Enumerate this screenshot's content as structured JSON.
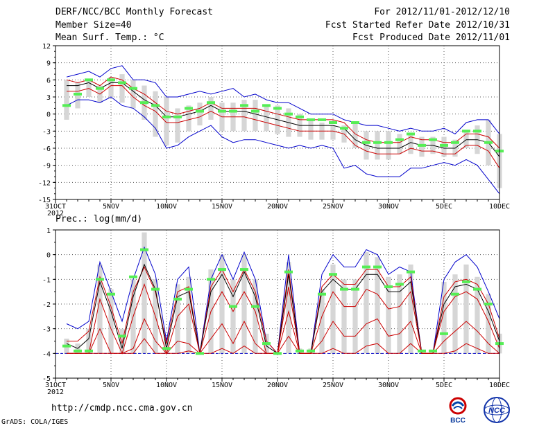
{
  "header": {
    "title": "DERF/NCC/BCC Monthly Forecast",
    "member_size": "Member Size=40",
    "variable": "Mean Surf. Temp.: °C",
    "period": "For 2012/11/01-2012/12/10",
    "started": "Fcst Started Refer Date 2012/10/31",
    "produced": "Fcst Produced Date 2012/11/01"
  },
  "footer": {
    "url": "http://cmdp.ncc.cma.gov.cn",
    "grads": "GrADS: COLA/IGES",
    "logo_bcc": "BCC",
    "logo_ncc": "NCC"
  },
  "colors": {
    "mean": "#000000",
    "envelope": "#0000cc",
    "spread": "#cc0000",
    "bar": "#d6d6d6",
    "marker": "#55ee55",
    "grid": "#555555",
    "dashed_zero": "#0000cc"
  },
  "chart_data": [
    {
      "type": "line",
      "title": "Mean Surf. Temp.: °C",
      "x_tick_labels": [
        "31OCT",
        "5NOV",
        "10NOV",
        "15NOV",
        "20NOV",
        "25NOV",
        "30NOV",
        "5DEC",
        "10DEC"
      ],
      "x_tick_days": [
        0,
        5,
        10,
        15,
        20,
        25,
        30,
        35,
        40
      ],
      "year_label": "2012",
      "ylim": [
        -15,
        12
      ],
      "y_ticks": [
        -15,
        -12,
        -9,
        -6,
        -3,
        0,
        3,
        6,
        9,
        12
      ],
      "days": [
        1,
        2,
        3,
        4,
        5,
        6,
        7,
        8,
        9,
        10,
        11,
        12,
        13,
        14,
        15,
        16,
        17,
        18,
        19,
        20,
        21,
        22,
        23,
        24,
        25,
        26,
        27,
        28,
        29,
        30,
        31,
        32,
        33,
        34,
        35,
        36,
        37,
        38,
        39,
        40
      ],
      "series": [
        {
          "name": "max",
          "values": [
            6.5,
            7,
            7.5,
            6.5,
            8,
            8.5,
            6,
            6,
            5.5,
            3,
            3,
            3.5,
            4,
            3.5,
            4,
            4.5,
            3,
            3.5,
            2.5,
            2,
            2,
            1,
            0,
            0,
            0,
            -1,
            -1.5,
            -2,
            -2,
            -2.5,
            -3,
            -2.5,
            -3,
            -3,
            -2.5,
            -3.5,
            -1.5,
            -1,
            -1,
            -3.5
          ]
        },
        {
          "name": "upper",
          "values": [
            6,
            5.5,
            6,
            5,
            6.5,
            6,
            4.5,
            3.5,
            2,
            0.5,
            0,
            0.5,
            1,
            2,
            1,
            1,
            1,
            1,
            0.5,
            0,
            -0.5,
            -1,
            -1,
            -1,
            -1,
            -1.5,
            -3.5,
            -4.5,
            -5,
            -5,
            -5,
            -4,
            -4.5,
            -4.5,
            -5,
            -5,
            -3.5,
            -3.5,
            -4,
            -6
          ]
        },
        {
          "name": "mean",
          "values": [
            5,
            5,
            5.5,
            4.5,
            5.5,
            5.5,
            4,
            2.5,
            1.5,
            -0.5,
            -0.5,
            0,
            0.5,
            1.5,
            0.5,
            0.5,
            0.5,
            0,
            -0.5,
            -1,
            -1.5,
            -2,
            -2,
            -2,
            -2,
            -2.5,
            -4.5,
            -5.5,
            -6,
            -6,
            -6,
            -5,
            -5.5,
            -5.5,
            -6,
            -6,
            -4.5,
            -4.5,
            -5,
            -7.5
          ]
        },
        {
          "name": "lower",
          "values": [
            4,
            4,
            4.5,
            3.5,
            5,
            5,
            3,
            1.5,
            0.5,
            -1.5,
            -1.5,
            -1,
            -0.5,
            0.5,
            -0.5,
            -0.5,
            -0.5,
            -1,
            -1.5,
            -2,
            -2.5,
            -3,
            -3,
            -3,
            -3,
            -3.5,
            -5.5,
            -6.5,
            -7,
            -7,
            -7,
            -6,
            -6.5,
            -6.5,
            -7,
            -7,
            -5.5,
            -5.5,
            -6.5,
            -9.5
          ]
        },
        {
          "name": "min",
          "values": [
            1.5,
            2.5,
            2.5,
            2,
            3,
            1.5,
            1,
            -0.5,
            -2.5,
            -6,
            -5.5,
            -4,
            -3,
            -2,
            -4,
            -5,
            -4.5,
            -4.5,
            -5,
            -5.5,
            -6,
            -5.5,
            -6,
            -5.5,
            -6,
            -9.5,
            -9,
            -10.5,
            -11,
            -11,
            -11,
            -9.5,
            -9.5,
            -9,
            -8.5,
            -9,
            -8,
            -9,
            -11.5,
            -14
          ]
        },
        {
          "name": "observed_marks",
          "values": [
            1.5,
            3.5,
            6,
            4.5,
            6,
            5.5,
            4.5,
            2,
            1.5,
            -0.5,
            -0.5,
            1,
            0.5,
            2,
            0.5,
            0.5,
            1.5,
            0.5,
            1.5,
            1,
            0,
            -0.5,
            -1,
            -1,
            -1.5,
            -2.5,
            -1.5,
            -5,
            -5,
            -5,
            -4.5,
            -3.5,
            -5.5,
            -4.5,
            -5.5,
            -5,
            -3,
            -3,
            -5,
            -6.5
          ]
        },
        {
          "name": "bar_top",
          "values": [
            6,
            5.5,
            6,
            5,
            6.5,
            7,
            6,
            5,
            4,
            3,
            1,
            1.5,
            2,
            3,
            2,
            2,
            2.5,
            2.5,
            1.5,
            1.5,
            1,
            0,
            -1,
            -1.5,
            -2,
            -2,
            -1.5,
            -3,
            -3,
            -3,
            -3.5,
            -3.5,
            -4,
            -4,
            -4,
            -4.5,
            -3,
            -2,
            -1,
            -3.5
          ]
        },
        {
          "name": "bar_bottom",
          "values": [
            -1,
            1,
            3,
            2,
            3,
            2,
            1,
            -1,
            -4,
            -5.5,
            -5,
            -3,
            -2,
            -1,
            -3,
            -3,
            -3,
            -3,
            -3,
            -3.5,
            -4,
            -4,
            -4.5,
            -4.5,
            -4.5,
            -5,
            -6,
            -8,
            -8,
            -8,
            -7,
            -7,
            -7.5,
            -7,
            -7.5,
            -7.5,
            -6,
            -7,
            -9,
            -13
          ]
        }
      ]
    },
    {
      "type": "line",
      "title": "Prec.: log(mm/d)",
      "x_tick_labels": [
        "31OCT",
        "5NOV",
        "10NOV",
        "15NOV",
        "20NOV",
        "25NOV",
        "30NOV",
        "5DEC",
        "10DEC"
      ],
      "x_tick_days": [
        0,
        5,
        10,
        15,
        20,
        25,
        30,
        35,
        40
      ],
      "year_label": "2012",
      "ylim": [
        -5,
        1
      ],
      "y_ticks": [
        -5,
        -4,
        -3,
        -2,
        -1,
        0,
        1
      ],
      "days": [
        1,
        2,
        3,
        4,
        5,
        6,
        7,
        8,
        9,
        10,
        11,
        12,
        13,
        14,
        15,
        16,
        17,
        18,
        19,
        20,
        21,
        22,
        23,
        24,
        25,
        26,
        27,
        28,
        29,
        30,
        31,
        32,
        33,
        34,
        35,
        36,
        37,
        38,
        39,
        40
      ],
      "series": [
        {
          "name": "max",
          "values": [
            -2.8,
            -3,
            -2.7,
            -0.3,
            -1.5,
            -2.7,
            -1,
            0.3,
            -0.8,
            -3.5,
            -1,
            -0.5,
            -4,
            -1,
            0,
            -1,
            0.1,
            -1,
            -3.5,
            -4,
            0,
            -4,
            -4,
            -0.8,
            0,
            -0.5,
            -0.5,
            0.2,
            0,
            -0.8,
            -0.5,
            -0.7,
            -4,
            -4,
            -1,
            -0.3,
            0,
            -0.5,
            -1.5,
            -2.6
          ]
        },
        {
          "name": "upper",
          "values": [
            -3.5,
            -3.5,
            -3.1,
            -0.9,
            -2.1,
            -3.6,
            -1.5,
            -0.5,
            -1.5,
            -3.6,
            -1.5,
            -1.3,
            -4,
            -1.3,
            -0.6,
            -1.5,
            -0.6,
            -1.5,
            -3.5,
            -4,
            -0.6,
            -4,
            -4,
            -1.3,
            -0.8,
            -1.2,
            -1.2,
            -0.6,
            -0.6,
            -1.3,
            -1.3,
            -0.9,
            -4,
            -4,
            -1.7,
            -1.1,
            -1,
            -1.2,
            -2,
            -3.4
          ]
        },
        {
          "name": "mean",
          "values": [
            -3.6,
            -3.8,
            -3.4,
            -1.1,
            -2.3,
            -3.8,
            -1.7,
            -0.4,
            -1.4,
            -3.8,
            -1.7,
            -1.5,
            -4,
            -1.5,
            -0.8,
            -1.7,
            -0.7,
            -1.7,
            -3.7,
            -4,
            -0.8,
            -4,
            -4,
            -1.5,
            -1,
            -1.4,
            -1.4,
            -0.8,
            -0.8,
            -1.5,
            -1.5,
            -1.1,
            -4,
            -4,
            -2,
            -1.3,
            -1.2,
            -1.4,
            -2.3,
            -3.5
          ]
        },
        {
          "name": "upper_red",
          "values": [
            -4,
            -4,
            -4,
            -1.8,
            -3,
            -4,
            -2.5,
            -1.2,
            -2.5,
            -4,
            -2.5,
            -2,
            -4,
            -2.3,
            -1.5,
            -2.3,
            -1.5,
            -2.3,
            -4,
            -4,
            -1.3,
            -4,
            -4,
            -2.5,
            -1.5,
            -2.1,
            -2.1,
            -1.4,
            -1.6,
            -2.2,
            -2.1,
            -1.5,
            -4,
            -4,
            -2.3,
            -1.7,
            -1.5,
            -1.8,
            -2.7,
            -3.8
          ]
        },
        {
          "name": "lower_red",
          "values": [
            -4,
            -4,
            -4,
            -3,
            -4,
            -4,
            -3.8,
            -2.6,
            -3.5,
            -4,
            -3.5,
            -3.6,
            -4,
            -3.4,
            -2.8,
            -3.6,
            -2.7,
            -3.6,
            -4,
            -4,
            -2.3,
            -4,
            -4,
            -3.5,
            -2.7,
            -3.3,
            -3.3,
            -2.8,
            -2.6,
            -3.3,
            -3.2,
            -2.7,
            -4,
            -4,
            -3.5,
            -3.1,
            -2.7,
            -3.1,
            -3.6,
            -4
          ]
        },
        {
          "name": "min_red",
          "values": [
            -4,
            -4,
            -4,
            -4,
            -4,
            -4,
            -4,
            -3.4,
            -4,
            -4,
            -4,
            -3.9,
            -4,
            -4,
            -3.8,
            -4,
            -3.7,
            -4,
            -4,
            -4,
            -3.3,
            -4,
            -4,
            -4,
            -3.8,
            -4,
            -4,
            -3.7,
            -3.6,
            -4,
            -4,
            -3.6,
            -4,
            -4,
            -4,
            -3.9,
            -3.6,
            -3.8,
            -4,
            -4
          ]
        },
        {
          "name": "observed_marks",
          "values": [
            -3.7,
            -3.9,
            -3.9,
            -1,
            -1.6,
            -3.3,
            -0.9,
            0.2,
            -1.4,
            -3.8,
            -1.8,
            -1.4,
            -4,
            -1,
            -0.6,
            -2.1,
            -0.6,
            -2.1,
            -3.6,
            -4,
            -0.7,
            -3.9,
            -3.9,
            -1.6,
            -0.8,
            -1.4,
            -1.4,
            -0.5,
            -0.5,
            -1.3,
            -1.2,
            -0.7,
            -3.9,
            -3.9,
            -3.2,
            -1.6,
            -1.1,
            -1.4,
            -2,
            -3.6
          ]
        },
        {
          "name": "bar_top",
          "values": [
            -3.4,
            -3.6,
            -3,
            -0.4,
            -1.4,
            -3,
            -1,
            0.9,
            -1,
            -3.4,
            -1.2,
            -0.9,
            -4,
            -0.6,
            0,
            -1,
            0,
            -1,
            -3.2,
            -4,
            -0.3,
            -3.8,
            -3.8,
            -1.4,
            -0.4,
            -1,
            -1,
            0.1,
            -0.1,
            -0.9,
            -0.8,
            -0.4,
            -4,
            -4,
            -1.1,
            -0.8,
            -0.4,
            -0.9,
            -1.6,
            -3.2
          ]
        },
        {
          "name": "bar_bottom",
          "values": [
            -4,
            -4,
            -4,
            -4,
            -4,
            -4,
            -4,
            -4,
            -4,
            -4,
            -4,
            -4,
            -4,
            -4,
            -4,
            -4,
            -4,
            -4,
            -4,
            -4,
            -4,
            -4,
            -4,
            -4,
            -4,
            -4,
            -4,
            -4,
            -4,
            -4,
            -4,
            -4,
            -4,
            -4,
            -4,
            -4,
            -4,
            -4,
            -4,
            -4
          ]
        }
      ]
    }
  ]
}
